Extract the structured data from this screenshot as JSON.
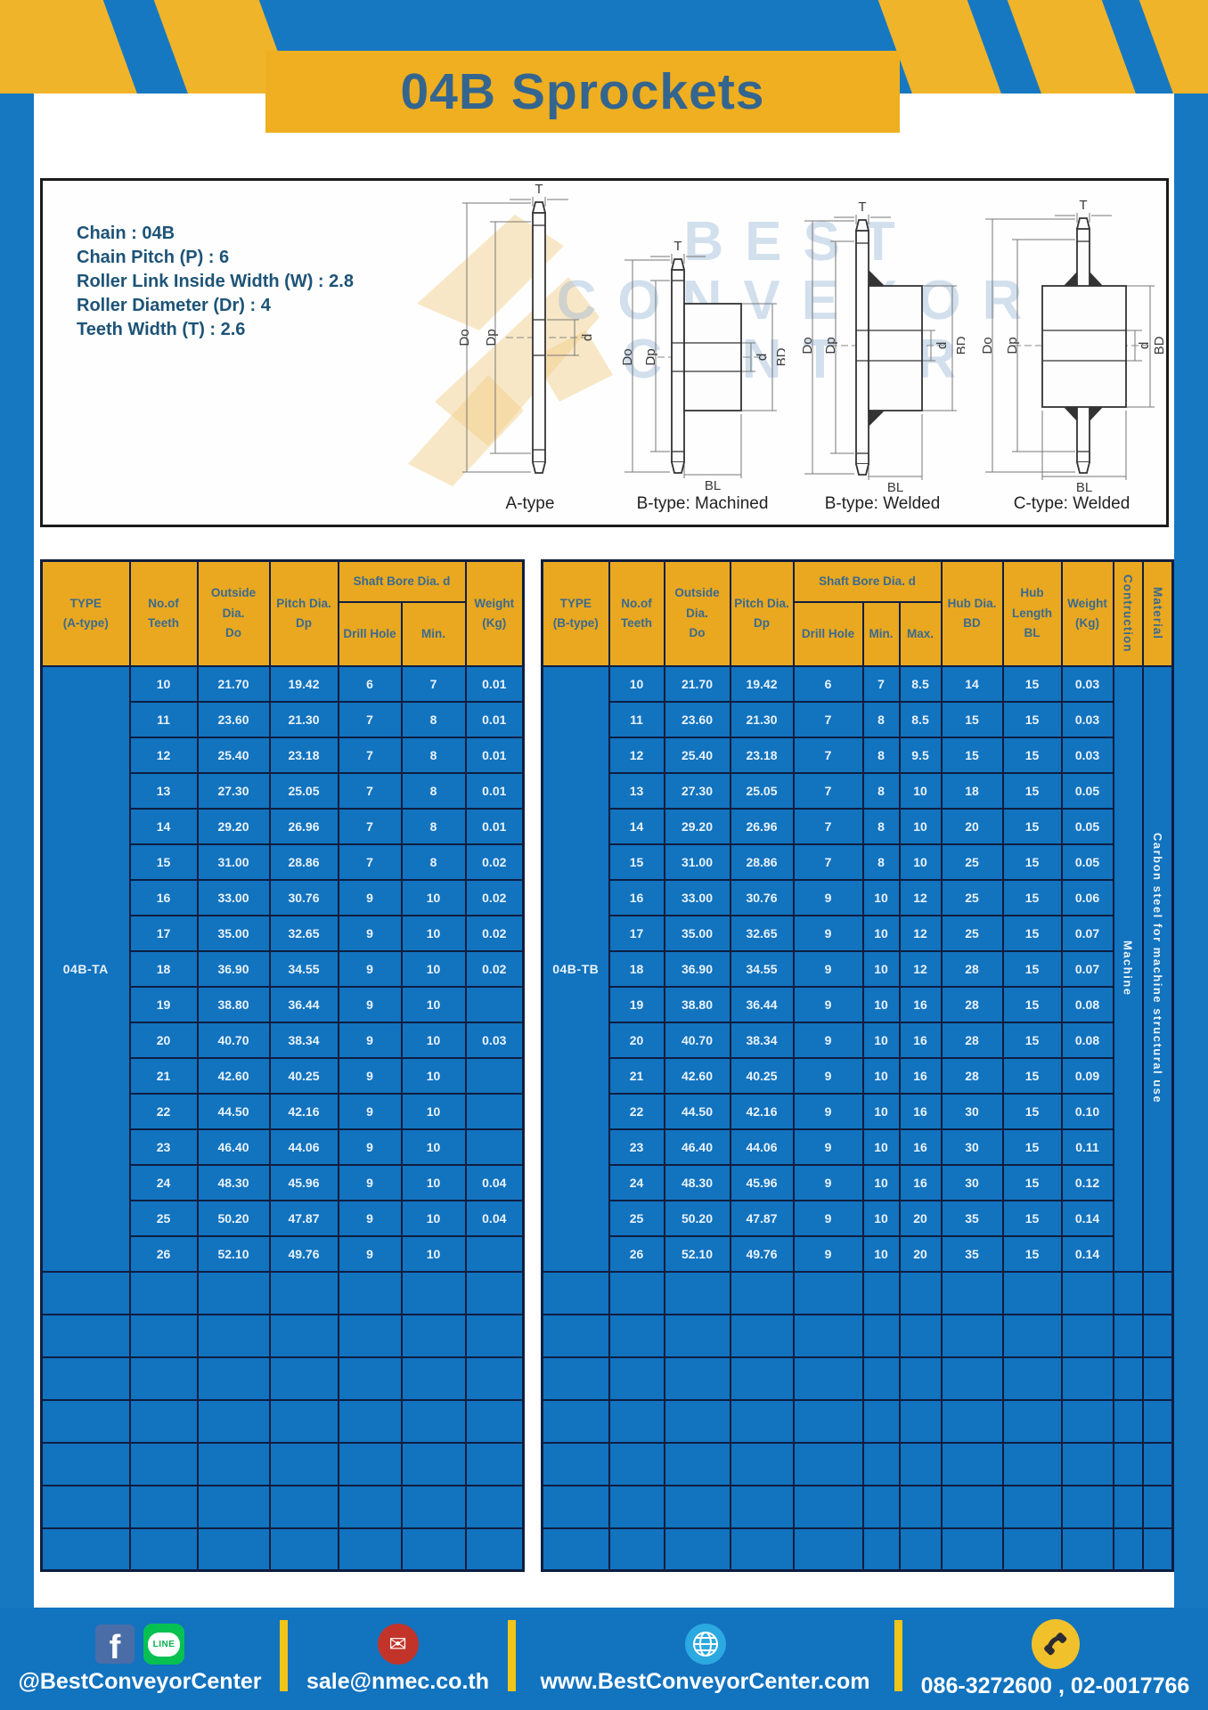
{
  "title": "04B Sprockets",
  "specs": [
    "Chain : 04B",
    "Chain Pitch (P) : 6",
    "Roller Link Inside Width (W) : 2.8",
    "Roller Diameter (Dr) : 4",
    "Teeth Width (T) : 2.6"
  ],
  "diagram": {
    "watermark": [
      "BEST",
      "CONVEYOR",
      "CENTER"
    ],
    "captions": [
      "A-type",
      "B-type: Machined",
      "B-type: Welded",
      "C-type: Welded"
    ],
    "labels": {
      "t": "T",
      "outside": "Do",
      "pitch": "Dp",
      "bore": "d",
      "hub": "BD",
      "hublen": "BL"
    }
  },
  "tables": {
    "left": {
      "h": {
        "type": [
          "TYPE",
          "(A-type)"
        ],
        "teeth": [
          "No.of",
          "Teeth"
        ],
        "outside": [
          "Outside",
          "Dia.",
          "Do"
        ],
        "pitch": [
          "Pitch Dia.",
          "Dp"
        ],
        "shaft": "Shaft Bore Dia. d",
        "drill": "Drill Hole",
        "min": "Min.",
        "weight": [
          "Weight",
          "(Kg)"
        ]
      },
      "type_value": "04B-TA",
      "empty_rows": 7,
      "rows": [
        [
          "10",
          "21.70",
          "19.42",
          "6",
          "7",
          "0.01"
        ],
        [
          "11",
          "23.60",
          "21.30",
          "7",
          "8",
          "0.01"
        ],
        [
          "12",
          "25.40",
          "23.18",
          "7",
          "8",
          "0.01"
        ],
        [
          "13",
          "27.30",
          "25.05",
          "7",
          "8",
          "0.01"
        ],
        [
          "14",
          "29.20",
          "26.96",
          "7",
          "8",
          "0.01"
        ],
        [
          "15",
          "31.00",
          "28.86",
          "7",
          "8",
          "0.02"
        ],
        [
          "16",
          "33.00",
          "30.76",
          "9",
          "10",
          "0.02"
        ],
        [
          "17",
          "35.00",
          "32.65",
          "9",
          "10",
          "0.02"
        ],
        [
          "18",
          "36.90",
          "34.55",
          "9",
          "10",
          "0.02"
        ],
        [
          "19",
          "38.80",
          "36.44",
          "9",
          "10",
          ""
        ],
        [
          "20",
          "40.70",
          "38.34",
          "9",
          "10",
          "0.03"
        ],
        [
          "21",
          "42.60",
          "40.25",
          "9",
          "10",
          ""
        ],
        [
          "22",
          "44.50",
          "42.16",
          "9",
          "10",
          ""
        ],
        [
          "23",
          "46.40",
          "44.06",
          "9",
          "10",
          ""
        ],
        [
          "24",
          "48.30",
          "45.96",
          "9",
          "10",
          "0.04"
        ],
        [
          "25",
          "50.20",
          "47.87",
          "9",
          "10",
          "0.04"
        ],
        [
          "26",
          "52.10",
          "49.76",
          "9",
          "10",
          ""
        ]
      ]
    },
    "right": {
      "h": {
        "type": [
          "TYPE",
          "(B-type)"
        ],
        "teeth": [
          "No.of",
          "Teeth"
        ],
        "outside": [
          "Outside",
          "Dia.",
          "Do"
        ],
        "pitch": [
          "Pitch Dia.",
          "Dp"
        ],
        "shaft": "Shaft Bore Dia. d",
        "drill": "Drill Hole",
        "min": "Min.",
        "max": "Max.",
        "hub_dia": [
          "Hub Dia.",
          "BD"
        ],
        "hub_len": [
          "Hub",
          "Length",
          "BL"
        ],
        "weight": [
          "Weight",
          "(Kg)"
        ],
        "construction": "Contruction",
        "material": "Material"
      },
      "type_value": "04B-TB",
      "construction_value": "Machine",
      "material_value": "Carbon steel for machine structural use",
      "empty_rows": 7,
      "rows": [
        [
          "10",
          "21.70",
          "19.42",
          "6",
          "7",
          "8.5",
          "14",
          "15",
          "0.03"
        ],
        [
          "11",
          "23.60",
          "21.30",
          "7",
          "8",
          "8.5",
          "15",
          "15",
          "0.03"
        ],
        [
          "12",
          "25.40",
          "23.18",
          "7",
          "8",
          "9.5",
          "15",
          "15",
          "0.03"
        ],
        [
          "13",
          "27.30",
          "25.05",
          "7",
          "8",
          "10",
          "18",
          "15",
          "0.05"
        ],
        [
          "14",
          "29.20",
          "26.96",
          "7",
          "8",
          "10",
          "20",
          "15",
          "0.05"
        ],
        [
          "15",
          "31.00",
          "28.86",
          "7",
          "8",
          "10",
          "25",
          "15",
          "0.05"
        ],
        [
          "16",
          "33.00",
          "30.76",
          "9",
          "10",
          "12",
          "25",
          "15",
          "0.06"
        ],
        [
          "17",
          "35.00",
          "32.65",
          "9",
          "10",
          "12",
          "25",
          "15",
          "0.07"
        ],
        [
          "18",
          "36.90",
          "34.55",
          "9",
          "10",
          "12",
          "28",
          "15",
          "0.07"
        ],
        [
          "19",
          "38.80",
          "36.44",
          "9",
          "10",
          "16",
          "28",
          "15",
          "0.08"
        ],
        [
          "20",
          "40.70",
          "38.34",
          "9",
          "10",
          "16",
          "28",
          "15",
          "0.08"
        ],
        [
          "21",
          "42.60",
          "40.25",
          "9",
          "10",
          "16",
          "28",
          "15",
          "0.09"
        ],
        [
          "22",
          "44.50",
          "42.16",
          "9",
          "10",
          "16",
          "30",
          "15",
          "0.10"
        ],
        [
          "23",
          "46.40",
          "44.06",
          "9",
          "10",
          "16",
          "30",
          "15",
          "0.11"
        ],
        [
          "24",
          "48.30",
          "45.96",
          "9",
          "10",
          "16",
          "30",
          "15",
          "0.12"
        ],
        [
          "25",
          "50.20",
          "47.87",
          "9",
          "10",
          "20",
          "35",
          "15",
          "0.14"
        ],
        [
          "26",
          "52.10",
          "49.76",
          "9",
          "10",
          "20",
          "35",
          "15",
          "0.14"
        ]
      ]
    }
  },
  "footer": {
    "facebook_line_label": "@BestConveyorCenter",
    "line_icon_text": "LINE",
    "email": "sale@nmec.co.th",
    "website": "www.BestConveyorCenter.com",
    "phone": "086-3272600 , 02-0017766"
  },
  "colors": {
    "frame_blue": "#1778C2",
    "cell_blue": "#1273BF",
    "header_yellow": "#E9A820",
    "accent_yellow": "#F0B42A",
    "border_navy": "#0E1E40",
    "title_blue": "#34658F"
  }
}
